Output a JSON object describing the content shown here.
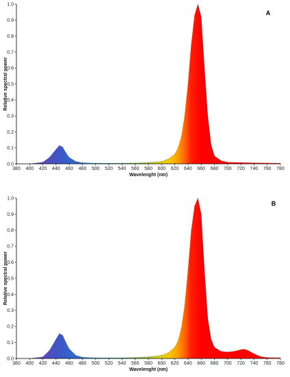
{
  "chart_data": [
    {
      "type": "area",
      "panel_label": "A",
      "xlabel": "Wavelenght (nm)",
      "ylabel": "Relative spectral power",
      "xlim": [
        380,
        780
      ],
      "ylim": [
        0,
        1.0
      ],
      "x_ticks": [
        "380",
        "400",
        "420",
        "440",
        "460",
        "480",
        "500",
        "520",
        "540",
        "560",
        "580",
        "600",
        "620",
        "640",
        "660",
        "680",
        "700",
        "720",
        "740",
        "760",
        "780"
      ],
      "y_ticks": [
        "0.0",
        "0.1",
        "0.2",
        "0.3",
        "0.4",
        "0.5",
        "0.6",
        "0.7",
        "0.8",
        "0.9",
        "1.0"
      ],
      "grid": false,
      "fill": "spectral colors by wavelength",
      "x": [
        380,
        400,
        420,
        430,
        440,
        445,
        450,
        455,
        460,
        470,
        480,
        500,
        520,
        540,
        560,
        580,
        600,
        610,
        620,
        625,
        630,
        635,
        640,
        645,
        650,
        655,
        660,
        665,
        670,
        675,
        680,
        690,
        700,
        720,
        740,
        760,
        780
      ],
      "y": [
        0.0,
        0.0,
        0.01,
        0.04,
        0.09,
        0.115,
        0.105,
        0.07,
        0.04,
        0.015,
        0.007,
        0.004,
        0.004,
        0.004,
        0.005,
        0.008,
        0.015,
        0.03,
        0.06,
        0.1,
        0.17,
        0.3,
        0.5,
        0.75,
        0.93,
        1.0,
        0.92,
        0.6,
        0.3,
        0.12,
        0.05,
        0.02,
        0.01,
        0.008,
        0.006,
        0.005,
        0.004
      ]
    },
    {
      "type": "area",
      "panel_label": "B",
      "xlabel": "Wavelenght (nm)",
      "ylabel": "Relative spectral power",
      "xlim": [
        380,
        780
      ],
      "ylim": [
        0,
        1.0
      ],
      "x_ticks": [
        "380",
        "400",
        "420",
        "440",
        "460",
        "480",
        "500",
        "520",
        "540",
        "560",
        "580",
        "600",
        "620",
        "640",
        "660",
        "680",
        "700",
        "720",
        "740",
        "760",
        "780"
      ],
      "y_ticks": [
        "0.0",
        "0.1",
        "0.2",
        "0.3",
        "0.4",
        "0.5",
        "0.6",
        "0.7",
        "0.8",
        "0.9",
        "1.0"
      ],
      "grid": false,
      "fill": "spectral colors by wavelength",
      "x": [
        380,
        400,
        420,
        430,
        440,
        445,
        450,
        455,
        460,
        470,
        480,
        500,
        520,
        540,
        560,
        580,
        600,
        610,
        620,
        625,
        630,
        635,
        640,
        645,
        650,
        655,
        660,
        665,
        670,
        675,
        680,
        690,
        700,
        710,
        720,
        725,
        730,
        740,
        750,
        760,
        780
      ],
      "y": [
        0.0,
        0.0,
        0.01,
        0.05,
        0.12,
        0.155,
        0.145,
        0.1,
        0.06,
        0.02,
        0.008,
        0.004,
        0.004,
        0.004,
        0.006,
        0.01,
        0.02,
        0.035,
        0.07,
        0.11,
        0.19,
        0.33,
        0.55,
        0.8,
        0.95,
        1.0,
        0.9,
        0.55,
        0.25,
        0.12,
        0.07,
        0.045,
        0.04,
        0.045,
        0.055,
        0.058,
        0.052,
        0.03,
        0.012,
        0.006,
        0.004
      ]
    }
  ]
}
